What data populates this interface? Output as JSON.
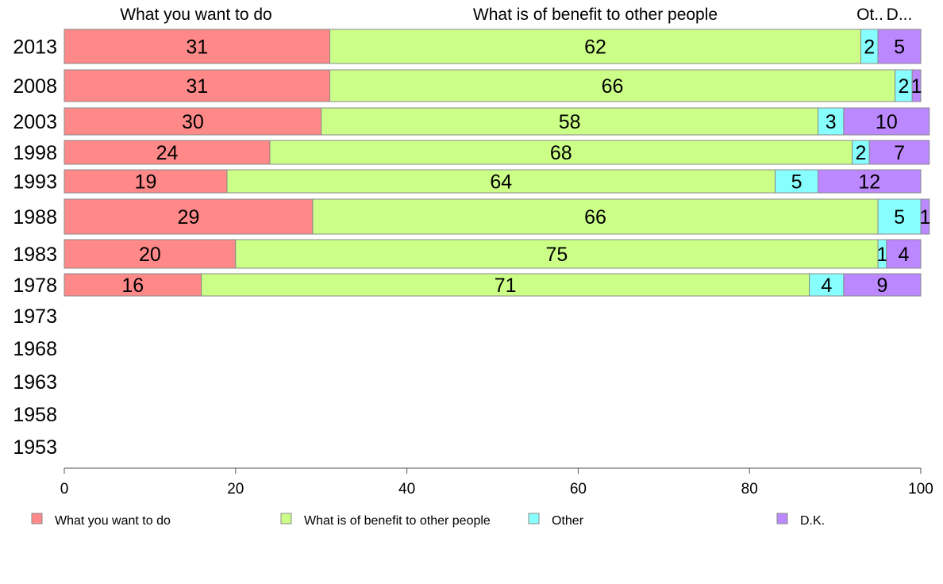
{
  "chart_data": {
    "type": "bar",
    "orientation": "horizontal",
    "stacked": true,
    "xlim": [
      0,
      100
    ],
    "x_ticks": [
      "0",
      "20",
      "40",
      "60",
      "80",
      "100"
    ],
    "grid": false,
    "legend_position": "bottom",
    "categories": [
      "2013",
      "2008",
      "2003",
      "1998",
      "1993",
      "1988",
      "1983",
      "1978",
      "1973",
      "1968",
      "1963",
      "1958",
      "1953"
    ],
    "column_headers": [
      "What you want to do",
      "What is of benefit to other people",
      "Ot..",
      "D..."
    ],
    "series": [
      {
        "name": "What you want to do",
        "color": "#ff8888",
        "values": [
          31,
          31,
          30,
          24,
          19,
          29,
          20,
          16,
          null,
          null,
          null,
          null,
          null
        ]
      },
      {
        "name": "What is of benefit to other people",
        "color": "#ccff88",
        "values": [
          62,
          66,
          58,
          68,
          64,
          66,
          75,
          71,
          null,
          null,
          null,
          null,
          null
        ]
      },
      {
        "name": "Other",
        "color": "#88ffff",
        "values": [
          2,
          2,
          3,
          2,
          5,
          5,
          1,
          4,
          null,
          null,
          null,
          null,
          null
        ]
      },
      {
        "name": "D.K.",
        "color": "#bb88ff",
        "values": [
          5,
          1,
          10,
          7,
          12,
          1,
          4,
          9,
          null,
          null,
          null,
          null,
          null
        ]
      }
    ]
  }
}
